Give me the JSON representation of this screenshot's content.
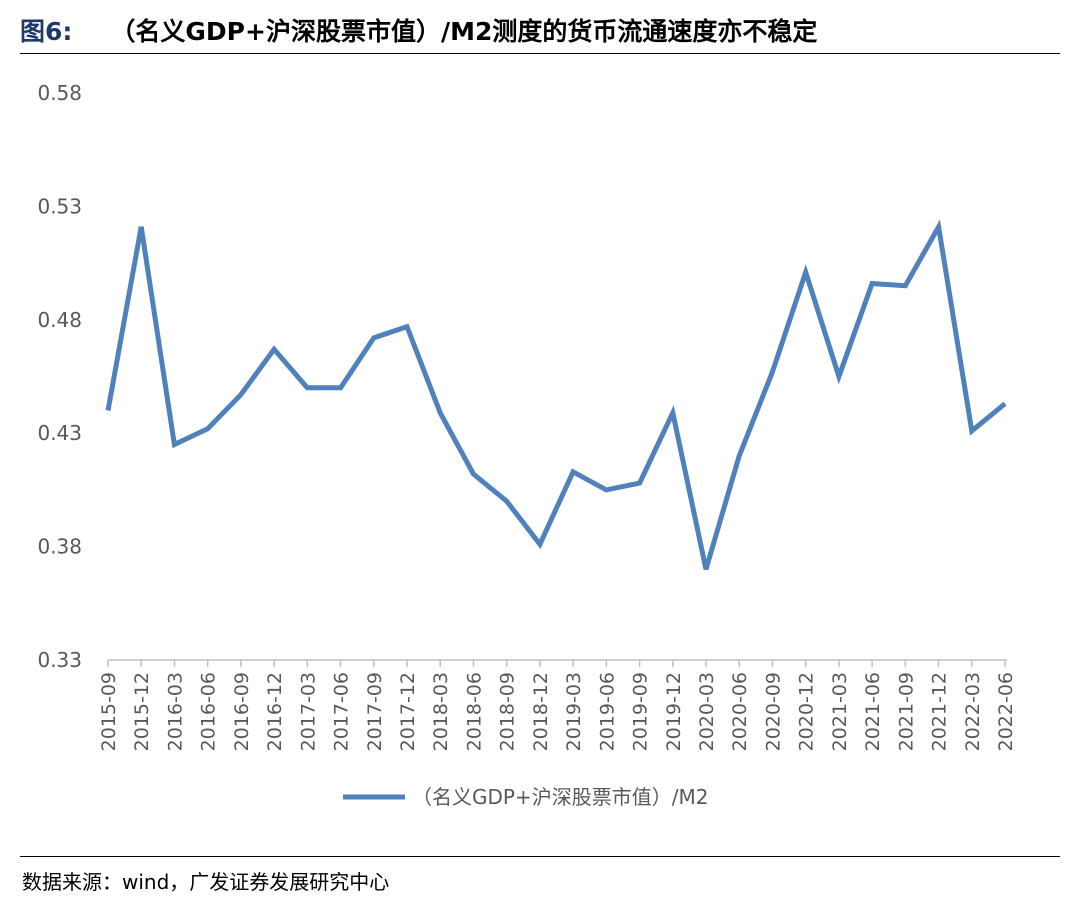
{
  "header": {
    "figure_number": "图6:",
    "title": "（名义GDP+沪深股票市值）/M2测度的货币流通速度亦不稳定"
  },
  "footer": {
    "source": "数据来源：wind，广发证券发展研究中心"
  },
  "colors": {
    "series_line": "#4f81bd",
    "axis": "#bfbfbf",
    "tick_text": "#595959"
  },
  "chart_data": {
    "type": "line",
    "title": "",
    "xlabel": "",
    "ylabel": "",
    "ylim": [
      0.33,
      0.58
    ],
    "yticks": [
      "0.58",
      "0.53",
      "0.48",
      "0.43",
      "0.38",
      "0.33"
    ],
    "grid": false,
    "legend_position": "bottom",
    "categories": [
      "2015-09",
      "2015-12",
      "2016-03",
      "2016-06",
      "2016-09",
      "2016-12",
      "2017-03",
      "2017-06",
      "2017-09",
      "2017-12",
      "2018-03",
      "2018-06",
      "2018-09",
      "2018-12",
      "2019-03",
      "2019-06",
      "2019-09",
      "2019-12",
      "2020-03",
      "2020-06",
      "2020-09",
      "2020-12",
      "2021-03",
      "2021-06",
      "2021-09",
      "2021-12",
      "2022-03",
      "2022-06"
    ],
    "series": [
      {
        "name": "（名义GDP+沪深股票市值）/M2",
        "values": [
          0.44,
          0.521,
          0.425,
          0.432,
          0.447,
          0.467,
          0.45,
          0.45,
          0.472,
          0.477,
          0.439,
          0.412,
          0.4,
          0.381,
          0.413,
          0.405,
          0.408,
          0.439,
          0.37,
          0.42,
          0.457,
          0.501,
          0.455,
          0.496,
          0.495,
          0.521,
          0.431,
          0.443
        ]
      }
    ]
  }
}
